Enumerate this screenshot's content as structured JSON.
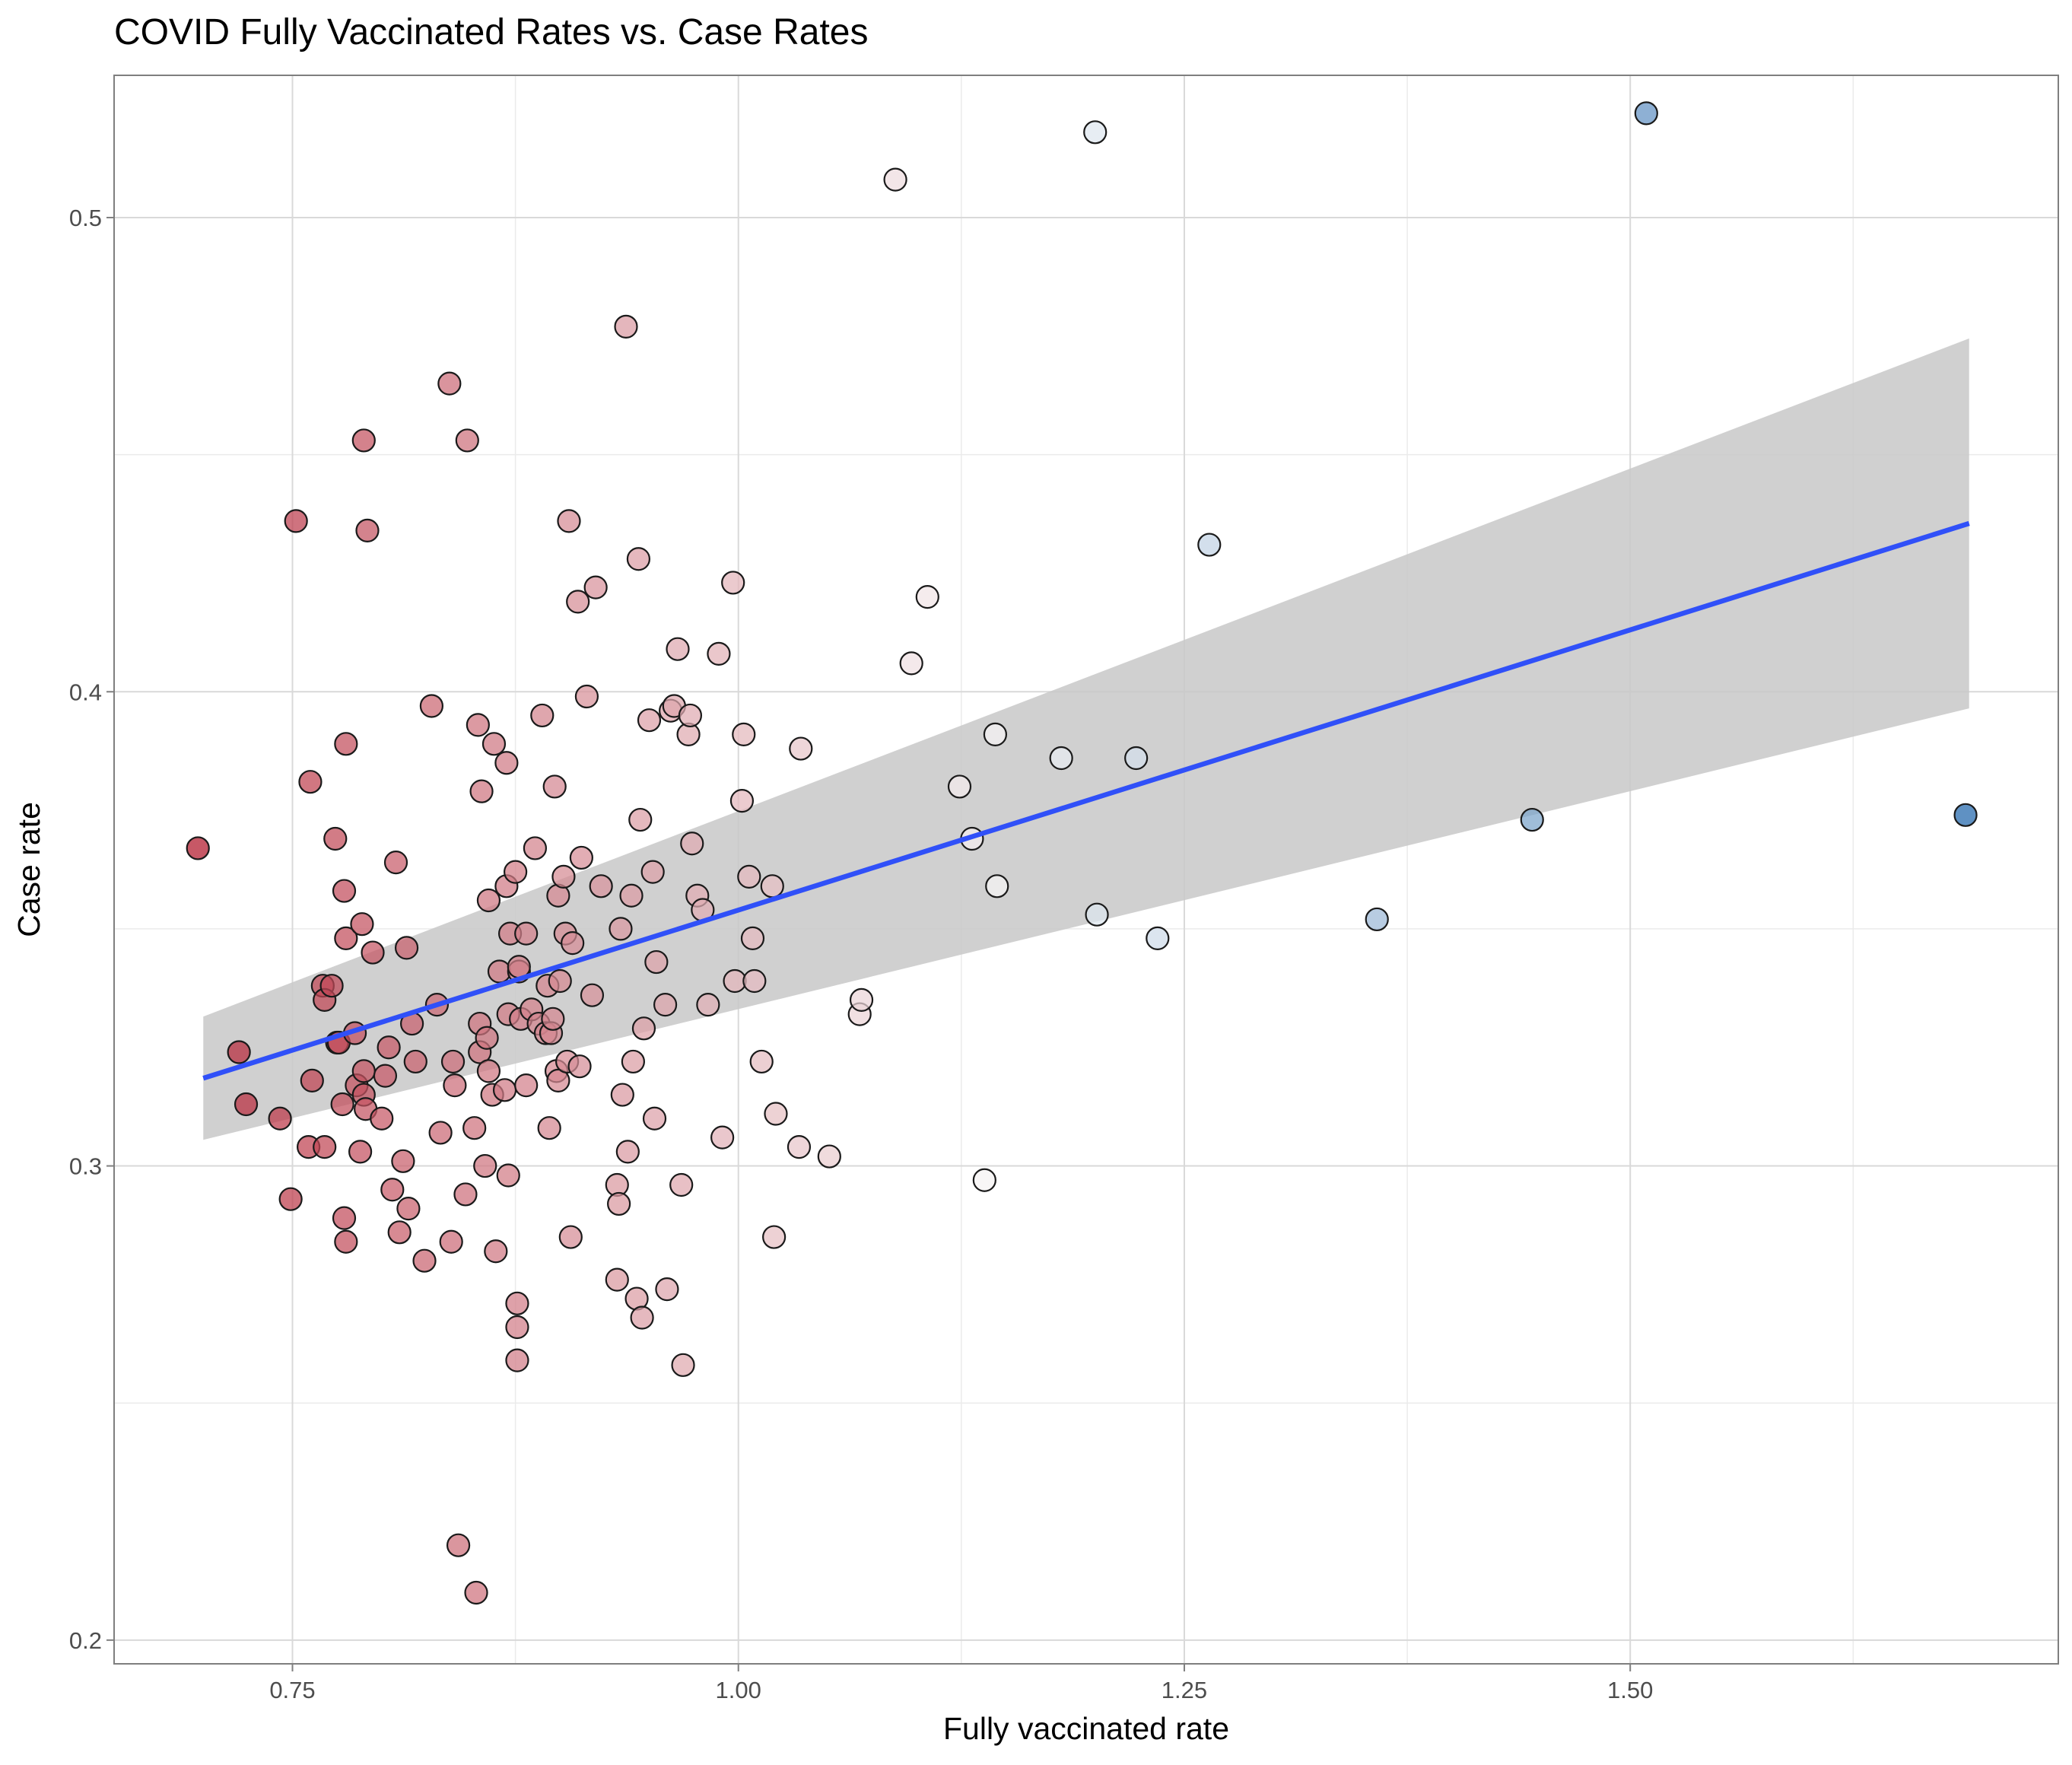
{
  "chart_data": {
    "type": "scatter",
    "title": "COVID Fully Vaccinated Rates vs. Case Rates",
    "xlabel": "Fully vaccinated rate",
    "ylabel": "Case rate",
    "xlim": [
      0.65,
      1.74
    ],
    "ylim": [
      0.195,
      0.53
    ],
    "x_ticks": [
      0.75,
      1.0,
      1.25,
      1.5
    ],
    "x_tick_labels": [
      "0.75",
      "1.00",
      "1.25",
      "1.50"
    ],
    "y_ticks": [
      0.2,
      0.3,
      0.4,
      0.5
    ],
    "y_tick_labels": [
      "0.2",
      "0.3",
      "0.4",
      "0.5"
    ],
    "grid": true,
    "legend": "none",
    "colors": {
      "low": "#b2182b",
      "mid": "#f7f7f7",
      "high": "#2166ac",
      "fit_line": "#3050f8",
      "ribbon": "#c8c8c8",
      "grid": "#d9d9d9",
      "panel_border": "#7f7f7f"
    },
    "fit": {
      "x": [
        0.7,
        1.69
      ],
      "y": [
        0.3185,
        0.4355
      ],
      "ci_lower": [
        0.3055,
        0.3965
      ],
      "ci_upper": [
        0.3315,
        0.4745
      ]
    },
    "points": [
      [
        0.697,
        0.367
      ],
      [
        0.72,
        0.324
      ],
      [
        0.724,
        0.313
      ],
      [
        0.743,
        0.31
      ],
      [
        0.749,
        0.293
      ],
      [
        0.752,
        0.436
      ],
      [
        0.759,
        0.304
      ],
      [
        0.76,
        0.381
      ],
      [
        0.761,
        0.318
      ],
      [
        0.767,
        0.338
      ],
      [
        0.768,
        0.304
      ],
      [
        0.768,
        0.335
      ],
      [
        0.772,
        0.338
      ],
      [
        0.774,
        0.369
      ],
      [
        0.775,
        0.326
      ],
      [
        0.776,
        0.326
      ],
      [
        0.778,
        0.313
      ],
      [
        0.779,
        0.289
      ],
      [
        0.779,
        0.358
      ],
      [
        0.78,
        0.389
      ],
      [
        0.78,
        0.348
      ],
      [
        0.78,
        0.284
      ],
      [
        0.785,
        0.328
      ],
      [
        0.786,
        0.317
      ],
      [
        0.788,
        0.303
      ],
      [
        0.789,
        0.351
      ],
      [
        0.79,
        0.453
      ],
      [
        0.79,
        0.32
      ],
      [
        0.79,
        0.315
      ],
      [
        0.791,
        0.312
      ],
      [
        0.792,
        0.434
      ],
      [
        0.795,
        0.345
      ],
      [
        0.8,
        0.31
      ],
      [
        0.802,
        0.319
      ],
      [
        0.804,
        0.325
      ],
      [
        0.806,
        0.295
      ],
      [
        0.808,
        0.364
      ],
      [
        0.81,
        0.286
      ],
      [
        0.812,
        0.301
      ],
      [
        0.814,
        0.346
      ],
      [
        0.815,
        0.291
      ],
      [
        0.817,
        0.33
      ],
      [
        0.819,
        0.322
      ],
      [
        0.824,
        0.28
      ],
      [
        0.828,
        0.397
      ],
      [
        0.831,
        0.334
      ],
      [
        0.833,
        0.307
      ],
      [
        0.838,
        0.465
      ],
      [
        0.839,
        0.284
      ],
      [
        0.84,
        0.322
      ],
      [
        0.841,
        0.317
      ],
      [
        0.843,
        0.22
      ],
      [
        0.847,
        0.294
      ],
      [
        0.848,
        0.453
      ],
      [
        0.852,
        0.308
      ],
      [
        0.853,
        0.21
      ],
      [
        0.854,
        0.393
      ],
      [
        0.855,
        0.33
      ],
      [
        0.855,
        0.324
      ],
      [
        0.856,
        0.379
      ],
      [
        0.858,
        0.3
      ],
      [
        0.859,
        0.327
      ],
      [
        0.86,
        0.356
      ],
      [
        0.86,
        0.32
      ],
      [
        0.862,
        0.315
      ],
      [
        0.863,
        0.389
      ],
      [
        0.864,
        0.282
      ],
      [
        0.866,
        0.341
      ],
      [
        0.869,
        0.316
      ],
      [
        0.87,
        0.359
      ],
      [
        0.87,
        0.385
      ],
      [
        0.871,
        0.332
      ],
      [
        0.871,
        0.298
      ],
      [
        0.872,
        0.349
      ],
      [
        0.875,
        0.362
      ],
      [
        0.876,
        0.259
      ],
      [
        0.876,
        0.266
      ],
      [
        0.876,
        0.271
      ],
      [
        0.877,
        0.341
      ],
      [
        0.877,
        0.342
      ],
      [
        0.878,
        0.331
      ],
      [
        0.881,
        0.349
      ],
      [
        0.881,
        0.317
      ],
      [
        0.884,
        0.333
      ],
      [
        0.886,
        0.367
      ],
      [
        0.888,
        0.33
      ],
      [
        0.89,
        0.395
      ],
      [
        0.892,
        0.328
      ],
      [
        0.893,
        0.338
      ],
      [
        0.894,
        0.308
      ],
      [
        0.895,
        0.328
      ],
      [
        0.896,
        0.331
      ],
      [
        0.897,
        0.38
      ],
      [
        0.898,
        0.32
      ],
      [
        0.899,
        0.318
      ],
      [
        0.899,
        0.357
      ],
      [
        0.9,
        0.339
      ],
      [
        0.902,
        0.361
      ],
      [
        0.903,
        0.349
      ],
      [
        0.904,
        0.322
      ],
      [
        0.905,
        0.436
      ],
      [
        0.906,
        0.285
      ],
      [
        0.907,
        0.347
      ],
      [
        0.91,
        0.419
      ],
      [
        0.911,
        0.321
      ],
      [
        0.912,
        0.365
      ],
      [
        0.915,
        0.399
      ],
      [
        0.918,
        0.336
      ],
      [
        0.92,
        0.422
      ],
      [
        0.923,
        0.359
      ],
      [
        0.932,
        0.276
      ],
      [
        0.932,
        0.296
      ],
      [
        0.933,
        0.292
      ],
      [
        0.934,
        0.35
      ],
      [
        0.935,
        0.315
      ],
      [
        0.937,
        0.477
      ],
      [
        0.938,
        0.303
      ],
      [
        0.94,
        0.357
      ],
      [
        0.941,
        0.322
      ],
      [
        0.943,
        0.272
      ],
      [
        0.944,
        0.428
      ],
      [
        0.945,
        0.373
      ],
      [
        0.946,
        0.268
      ],
      [
        0.947,
        0.329
      ],
      [
        0.95,
        0.394
      ],
      [
        0.952,
        0.362
      ],
      [
        0.953,
        0.31
      ],
      [
        0.954,
        0.343
      ],
      [
        0.959,
        0.334
      ],
      [
        0.96,
        0.274
      ],
      [
        0.962,
        0.396
      ],
      [
        0.964,
        0.397
      ],
      [
        0.966,
        0.409
      ],
      [
        0.968,
        0.296
      ],
      [
        0.969,
        0.258
      ],
      [
        0.972,
        0.391
      ],
      [
        0.973,
        0.395
      ],
      [
        0.974,
        0.368
      ],
      [
        0.977,
        0.357
      ],
      [
        0.98,
        0.354
      ],
      [
        0.983,
        0.334
      ],
      [
        0.989,
        0.408
      ],
      [
        0.991,
        0.306
      ],
      [
        0.997,
        0.423
      ],
      [
        0.998,
        0.339
      ],
      [
        1.002,
        0.377
      ],
      [
        1.003,
        0.391
      ],
      [
        1.006,
        0.361
      ],
      [
        1.008,
        0.348
      ],
      [
        1.009,
        0.339
      ],
      [
        1.013,
        0.322
      ],
      [
        1.019,
        0.359
      ],
      [
        1.02,
        0.285
      ],
      [
        1.021,
        0.311
      ],
      [
        1.034,
        0.304
      ],
      [
        1.035,
        0.388
      ],
      [
        1.051,
        0.302
      ],
      [
        1.068,
        0.332
      ],
      [
        1.069,
        0.335
      ],
      [
        1.088,
        0.508
      ],
      [
        1.097,
        0.406
      ],
      [
        1.106,
        0.42
      ],
      [
        1.124,
        0.38
      ],
      [
        1.131,
        0.369
      ],
      [
        1.138,
        0.297
      ],
      [
        1.144,
        0.391
      ],
      [
        1.145,
        0.359
      ],
      [
        1.181,
        0.386
      ],
      [
        1.2,
        0.518
      ],
      [
        1.201,
        0.353
      ],
      [
        1.223,
        0.386
      ],
      [
        1.235,
        0.348
      ],
      [
        1.264,
        0.431
      ],
      [
        1.358,
        0.352
      ],
      [
        1.445,
        0.373
      ],
      [
        1.509,
        0.522
      ],
      [
        1.688,
        0.374
      ]
    ]
  }
}
